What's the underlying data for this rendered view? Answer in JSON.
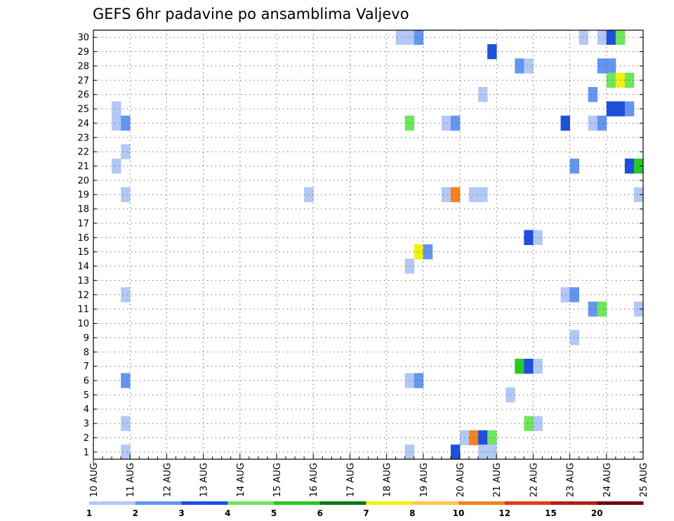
{
  "chart_data": {
    "type": "heatmap",
    "title": "GEFS 6hr padavine po ansamblima Valjevo",
    "xlabel": "",
    "ylabel": "",
    "x_start": "10 AUG 00Z",
    "x_end": "25 AUG 00Z",
    "x_step_hours": 6,
    "x_tick_labels": [
      "10 AUG",
      "11 AUG",
      "12 AUG",
      "13 AUG",
      "14 AUG",
      "15 AUG",
      "16 AUG",
      "17 AUG",
      "18 AUG",
      "19 AUG",
      "20 AUG",
      "21 AUG",
      "22 AUG",
      "23 AUG",
      "24 AUG",
      "25 AUG"
    ],
    "y_range": [
      1,
      30
    ],
    "y_tick_labels": [
      "1",
      "2",
      "3",
      "4",
      "5",
      "6",
      "7",
      "8",
      "9",
      "10",
      "11",
      "12",
      "13",
      "14",
      "15",
      "16",
      "17",
      "18",
      "19",
      "20",
      "21",
      "22",
      "23",
      "24",
      "25",
      "26",
      "27",
      "28",
      "29",
      "30"
    ],
    "grid": true,
    "value_unit_levels": [
      1,
      2,
      3,
      4,
      5,
      6,
      7,
      8,
      10,
      12,
      15,
      20
    ],
    "colorbar": {
      "labels": [
        "1",
        "2",
        "3",
        "4",
        "5",
        "6",
        "7",
        "8",
        "10",
        "12",
        "15",
        "20"
      ],
      "colors": [
        "#b4c8f5",
        "#6496f0",
        "#1e50dc",
        "#6ee65a",
        "#28c828",
        "#0a7814",
        "#f0f014",
        "#ffc846",
        "#f5821e",
        "#e13c14",
        "#b41e14",
        "#6e0a0a"
      ]
    },
    "cells": [
      {
        "member": 30,
        "step": 34,
        "cat": 0
      },
      {
        "member": 30,
        "step": 35,
        "cat": 0
      },
      {
        "member": 30,
        "step": 36,
        "cat": 1
      },
      {
        "member": 30,
        "step": 54,
        "cat": 0
      },
      {
        "member": 30,
        "step": 56,
        "cat": 0
      },
      {
        "member": 30,
        "step": 57,
        "cat": 2
      },
      {
        "member": 30,
        "step": 58,
        "cat": 3
      },
      {
        "member": 29,
        "step": 44,
        "cat": 2
      },
      {
        "member": 28,
        "step": 47,
        "cat": 1
      },
      {
        "member": 28,
        "step": 48,
        "cat": 0
      },
      {
        "member": 28,
        "step": 56,
        "cat": 1
      },
      {
        "member": 28,
        "step": 57,
        "cat": 1
      },
      {
        "member": 27,
        "step": 57,
        "cat": 3
      },
      {
        "member": 27,
        "step": 58,
        "cat": 6
      },
      {
        "member": 27,
        "step": 59,
        "cat": 3
      },
      {
        "member": 26,
        "step": 43,
        "cat": 0
      },
      {
        "member": 26,
        "step": 55,
        "cat": 1
      },
      {
        "member": 25,
        "step": 3,
        "cat": 0
      },
      {
        "member": 25,
        "step": 57,
        "cat": 2
      },
      {
        "member": 25,
        "step": 58,
        "cat": 2
      },
      {
        "member": 25,
        "step": 59,
        "cat": 1
      },
      {
        "member": 24,
        "step": 3,
        "cat": 0
      },
      {
        "member": 24,
        "step": 4,
        "cat": 1
      },
      {
        "member": 24,
        "step": 35,
        "cat": 3
      },
      {
        "member": 24,
        "step": 39,
        "cat": 0
      },
      {
        "member": 24,
        "step": 40,
        "cat": 1
      },
      {
        "member": 24,
        "step": 52,
        "cat": 2
      },
      {
        "member": 24,
        "step": 55,
        "cat": 0
      },
      {
        "member": 24,
        "step": 56,
        "cat": 1
      },
      {
        "member": 22,
        "step": 4,
        "cat": 0
      },
      {
        "member": 21,
        "step": 3,
        "cat": 0
      },
      {
        "member": 21,
        "step": 53,
        "cat": 1
      },
      {
        "member": 21,
        "step": 59,
        "cat": 2
      },
      {
        "member": 21,
        "step": 60,
        "cat": 4
      },
      {
        "member": 19,
        "step": 4,
        "cat": 0
      },
      {
        "member": 19,
        "step": 24,
        "cat": 0
      },
      {
        "member": 19,
        "step": 39,
        "cat": 0
      },
      {
        "member": 19,
        "step": 40,
        "cat": 8
      },
      {
        "member": 19,
        "step": 42,
        "cat": 0
      },
      {
        "member": 19,
        "step": 43,
        "cat": 0
      },
      {
        "member": 19,
        "step": 60,
        "cat": 0
      },
      {
        "member": 16,
        "step": 48,
        "cat": 2
      },
      {
        "member": 16,
        "step": 49,
        "cat": 0
      },
      {
        "member": 15,
        "step": 36,
        "cat": 6
      },
      {
        "member": 15,
        "step": 37,
        "cat": 1
      },
      {
        "member": 14,
        "step": 35,
        "cat": 0
      },
      {
        "member": 12,
        "step": 4,
        "cat": 0
      },
      {
        "member": 12,
        "step": 52,
        "cat": 0
      },
      {
        "member": 12,
        "step": 53,
        "cat": 1
      },
      {
        "member": 11,
        "step": 55,
        "cat": 1
      },
      {
        "member": 11,
        "step": 56,
        "cat": 3
      },
      {
        "member": 11,
        "step": 60,
        "cat": 0
      },
      {
        "member": 9,
        "step": 53,
        "cat": 0
      },
      {
        "member": 7,
        "step": 47,
        "cat": 4
      },
      {
        "member": 7,
        "step": 48,
        "cat": 2
      },
      {
        "member": 7,
        "step": 49,
        "cat": 0
      },
      {
        "member": 6,
        "step": 4,
        "cat": 1
      },
      {
        "member": 6,
        "step": 35,
        "cat": 0
      },
      {
        "member": 6,
        "step": 36,
        "cat": 1
      },
      {
        "member": 5,
        "step": 46,
        "cat": 0
      },
      {
        "member": 3,
        "step": 4,
        "cat": 0
      },
      {
        "member": 3,
        "step": 48,
        "cat": 3
      },
      {
        "member": 3,
        "step": 49,
        "cat": 0
      },
      {
        "member": 2,
        "step": 41,
        "cat": 0
      },
      {
        "member": 2,
        "step": 42,
        "cat": 8
      },
      {
        "member": 2,
        "step": 43,
        "cat": 2
      },
      {
        "member": 2,
        "step": 44,
        "cat": 3
      },
      {
        "member": 1,
        "step": 4,
        "cat": 0
      },
      {
        "member": 1,
        "step": 35,
        "cat": 0
      },
      {
        "member": 1,
        "step": 40,
        "cat": 2
      },
      {
        "member": 1,
        "step": 43,
        "cat": 0
      },
      {
        "member": 1,
        "step": 44,
        "cat": 0
      }
    ]
  }
}
